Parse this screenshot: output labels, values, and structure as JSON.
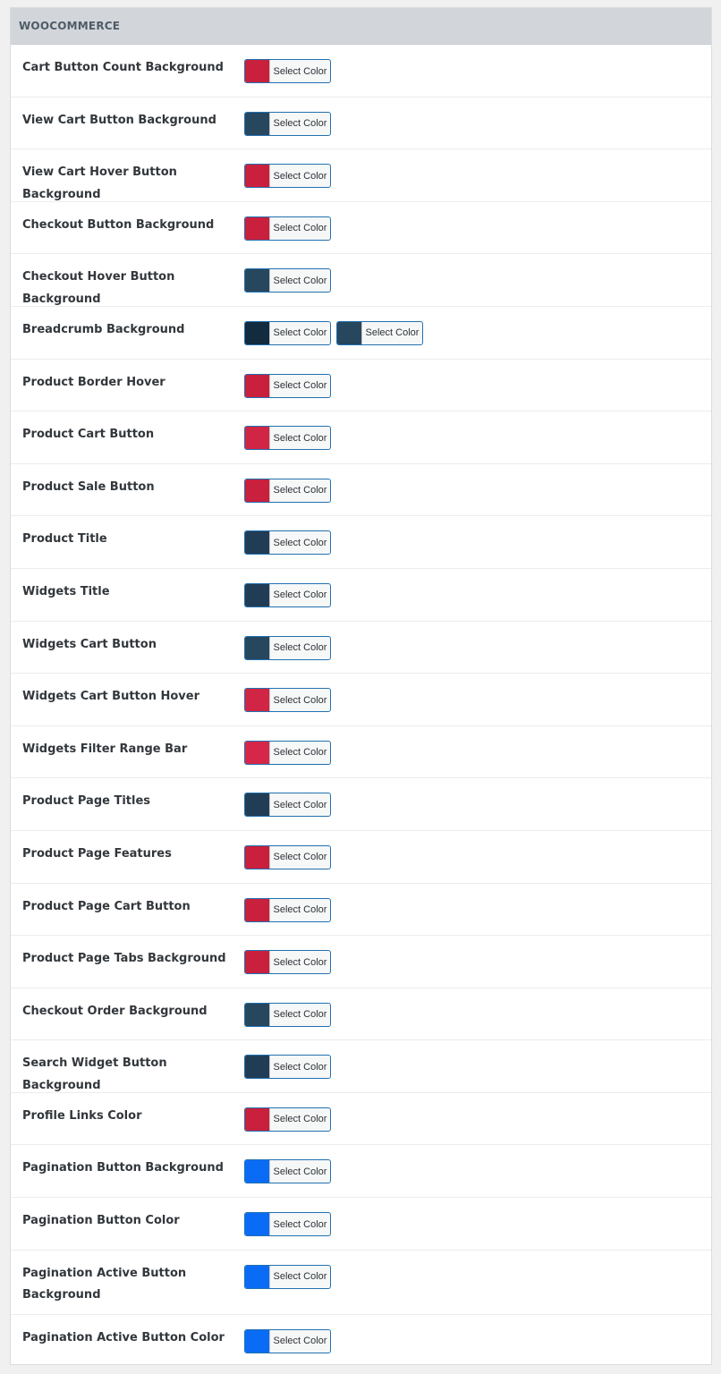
{
  "section": {
    "title": "WOOCOMMERCE"
  },
  "picker_label": "Select Color",
  "rows": [
    {
      "label": "Cart Button Count Background",
      "colors": [
        "#c8203d"
      ]
    },
    {
      "label": "View Cart Button Background",
      "colors": [
        "#26475e"
      ]
    },
    {
      "label": "View Cart Hover Button Background",
      "colors": [
        "#c8203d"
      ]
    },
    {
      "label": "Checkout Button Background",
      "colors": [
        "#c8203d"
      ]
    },
    {
      "label": "Checkout Hover Button Background",
      "colors": [
        "#26475e"
      ]
    },
    {
      "label": "Breadcrumb Background",
      "colors": [
        "#132b3e",
        "#26475e"
      ]
    },
    {
      "label": "Product Border Hover",
      "colors": [
        "#c8203d"
      ]
    },
    {
      "label": "Product Cart Button",
      "colors": [
        "#d02545"
      ]
    },
    {
      "label": "Product Sale Button",
      "colors": [
        "#c8203d"
      ]
    },
    {
      "label": "Product Title",
      "colors": [
        "#203d55"
      ]
    },
    {
      "label": "Widgets Title",
      "colors": [
        "#203d55"
      ]
    },
    {
      "label": "Widgets Cart Button",
      "colors": [
        "#26475e"
      ]
    },
    {
      "label": "Widgets Cart Button Hover",
      "colors": [
        "#d02545"
      ]
    },
    {
      "label": "Widgets Filter Range Bar",
      "colors": [
        "#d6274a"
      ]
    },
    {
      "label": "Product Page Titles",
      "colors": [
        "#203d55"
      ]
    },
    {
      "label": "Product Page Features",
      "colors": [
        "#c8203d"
      ]
    },
    {
      "label": "Product Page Cart Button",
      "colors": [
        "#c8203d"
      ]
    },
    {
      "label": "Product Page Tabs Background",
      "colors": [
        "#c8203d"
      ]
    },
    {
      "label": "Checkout Order Background",
      "colors": [
        "#26475e"
      ]
    },
    {
      "label": "Search Widget Button Background",
      "colors": [
        "#203d55"
      ]
    },
    {
      "label": "Profile Links Color",
      "colors": [
        "#c8203d"
      ]
    },
    {
      "label": "Pagination Button Background",
      "colors": [
        "#0a6cf5"
      ]
    },
    {
      "label": "Pagination Button Color",
      "colors": [
        "#0a6cf5"
      ]
    },
    {
      "label": "Pagination Active Button Background",
      "colors": [
        "#0a6cf5"
      ],
      "tall": true
    },
    {
      "label": "Pagination Active Button Color",
      "colors": [
        "#0a6cf5"
      ]
    }
  ]
}
